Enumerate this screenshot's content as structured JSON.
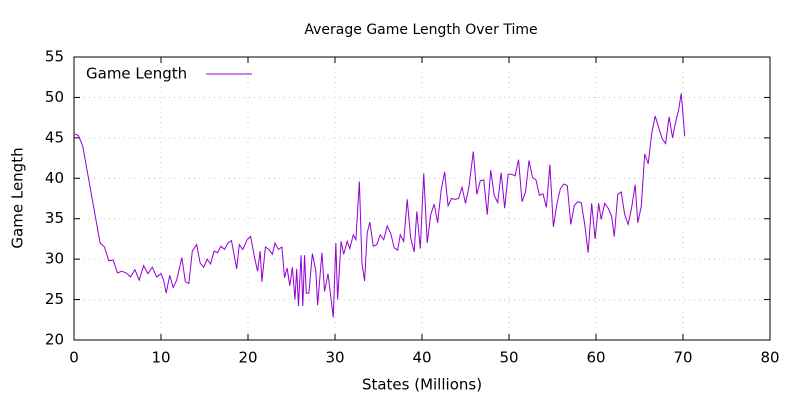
{
  "chart_data": {
    "type": "line",
    "title": "Average Game Length Over Time",
    "xlabel": "States (Millions)",
    "ylabel": "Game Length",
    "x": [
      0,
      0.5,
      1,
      1.5,
      2,
      2.5,
      3,
      3.5,
      4,
      4.5,
      5,
      5.5,
      6,
      6.5,
      7,
      7.5,
      8,
      8.5,
      9,
      9.5,
      10,
      10.3,
      10.6,
      11,
      11.4,
      11.8,
      12.4,
      12.8,
      13.2,
      13.6,
      14.1,
      14.5,
      14.9,
      15.3,
      15.7,
      16.1,
      16.5,
      16.9,
      17.3,
      17.7,
      18.1,
      18.7,
      19.0,
      19.4,
      19.9,
      20.3,
      20.7,
      21.1,
      21.4,
      21.6,
      22.0,
      22.4,
      22.8,
      23.1,
      23.5,
      23.9,
      24.2,
      24.5,
      24.8,
      25.1,
      25.4,
      25.6,
      25.8,
      26.1,
      26.3,
      26.5,
      26.7,
      27.0,
      27.4,
      27.8,
      28.0,
      28.5,
      28.8,
      29.2,
      29.8,
      30.1,
      30.3,
      30.7,
      31.0,
      31.4,
      31.7,
      32.1,
      32.4,
      32.8,
      33.1,
      33.4,
      33.7,
      34.0,
      34.4,
      34.8,
      35.2,
      35.6,
      36.0,
      36.4,
      36.8,
      37.2,
      37.5,
      37.9,
      38.3,
      38.7,
      39.1,
      39.4,
      39.8,
      40.2,
      40.6,
      41.0,
      41.4,
      41.8,
      42.2,
      42.6,
      43.0,
      43.4,
      43.8,
      44.2,
      44.6,
      45.0,
      45.4,
      45.9,
      46.3,
      46.7,
      47.1,
      47.5,
      47.9,
      48.3,
      48.7,
      49.1,
      49.5,
      49.9,
      50.3,
      50.7,
      51.1,
      51.5,
      51.9,
      52.3,
      52.7,
      53.1,
      53.5,
      53.9,
      54.3,
      54.7,
      55.1,
      55.5,
      55.9,
      56.3,
      56.7,
      57.1,
      57.5,
      57.9,
      58.3,
      58.7,
      59.1,
      59.5,
      59.9,
      60.3,
      60.6,
      61.0,
      61.4,
      61.8,
      62.1,
      62.5,
      62.9,
      63.3,
      63.7,
      64.1,
      64.5,
      64.8,
      65.2,
      65.6,
      66.0,
      66.4,
      66.8,
      67.2,
      67.6,
      68.0,
      68.4,
      68.8,
      69.1,
      69.5,
      69.8,
      70.2
    ],
    "series": [
      {
        "name": "Game Length",
        "color": "#9400d3",
        "values": [
          45.5,
          45.3,
          44,
          41,
          38,
          35,
          32,
          31.5,
          29.8,
          29.9,
          28.3,
          28.5,
          28.3,
          27.8,
          28.7,
          27.4,
          29.2,
          28.2,
          29,
          27.8,
          28.2,
          27.4,
          25.8,
          28,
          26.5,
          27.4,
          30.2,
          27.2,
          27,
          31,
          31.8,
          29.5,
          29,
          30,
          29.4,
          31,
          30.8,
          31.6,
          31.2,
          32,
          32.3,
          28.8,
          31.8,
          31.2,
          32.4,
          32.8,
          30.5,
          28.5,
          31,
          27.2,
          31.5,
          31.2,
          30.6,
          32,
          31.2,
          31.5,
          27.7,
          28.9,
          26.7,
          29,
          25,
          28.8,
          24.2,
          30.5,
          24.2,
          30.5,
          25.8,
          25.8,
          30.7,
          28.5,
          24.3,
          30.8,
          26,
          28.2,
          22.8,
          32,
          25,
          32.2,
          30.6,
          32.2,
          31.3,
          33,
          32.4,
          39.6,
          29.5,
          27.3,
          33.2,
          34.6,
          31.6,
          31.8,
          33,
          32.4,
          34.1,
          33.2,
          31.4,
          31.1,
          33,
          32.2,
          37.4,
          32.6,
          30.9,
          35.9,
          31.3,
          40.6,
          32,
          35.5,
          36.8,
          34.5,
          38.5,
          40.8,
          36.6,
          37.5,
          37.4,
          37.5,
          38.9,
          36.9,
          39,
          43.3,
          38,
          39.7,
          39.8,
          35.5,
          41,
          37.9,
          37,
          40.7,
          36.3,
          40.5,
          40.5,
          40.3,
          42.3,
          37.1,
          38.3,
          42.2,
          40.1,
          39.8,
          37.9,
          38.1,
          36.4,
          41.7,
          34,
          36.8,
          38.7,
          39.3,
          39.1,
          34.3,
          36.6,
          37.1,
          37,
          34.3,
          30.8,
          36.9,
          32.5,
          36.9,
          34.9,
          36.9,
          36.3,
          35.3,
          32.8,
          38,
          38.3,
          35.5,
          34.3,
          36.4,
          39.2,
          34.5,
          36.5,
          43,
          41.8,
          45.5,
          47.7,
          46.3,
          44.9,
          44.3,
          47.6,
          45,
          46.7,
          48.5,
          50.5,
          45.2
        ]
      }
    ],
    "xlim": [
      0,
      80
    ],
    "xticks": [
      0,
      10,
      20,
      30,
      40,
      50,
      60,
      70,
      80
    ],
    "ylim": [
      20,
      55
    ],
    "yticks": [
      20,
      25,
      30,
      35,
      40,
      45,
      50,
      55
    ],
    "grid": true,
    "legend": "top-left"
  }
}
